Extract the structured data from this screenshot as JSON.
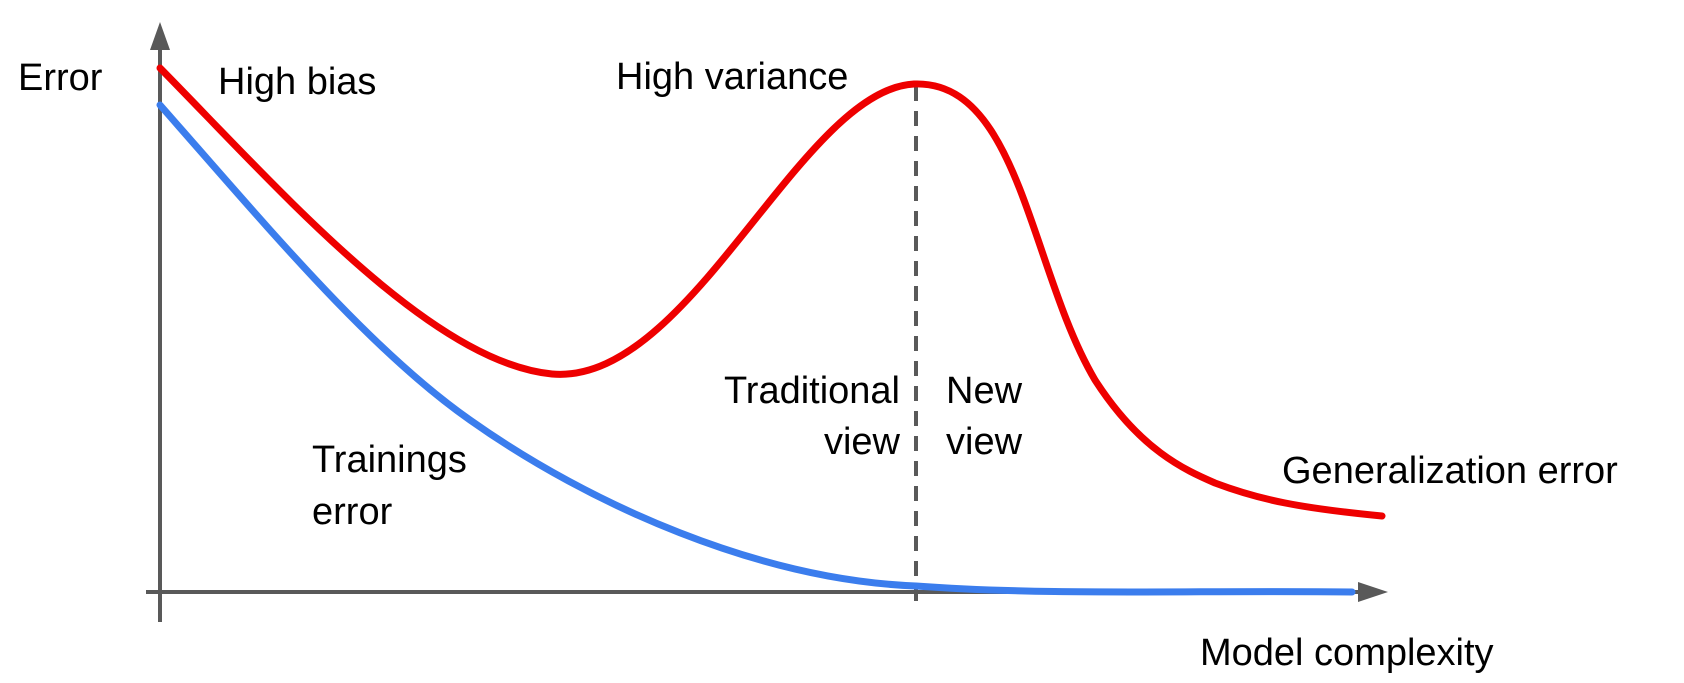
{
  "diagram": {
    "y_axis_label": "Error",
    "x_axis_label": "Model complexity",
    "annotations": {
      "high_bias": "High bias",
      "high_variance": "High variance",
      "traditional_view_line1": "Traditional",
      "traditional_view_line2": "view",
      "new_view_line1": "New",
      "new_view_line2": "view",
      "training_error_line1": "Trainings",
      "training_error_line2": "error",
      "generalization_error": "Generalization error"
    },
    "colors": {
      "generalization_curve": "#ee0000",
      "training_curve": "#3b7ded",
      "axes": "#595959",
      "divider": "#595959"
    }
  }
}
